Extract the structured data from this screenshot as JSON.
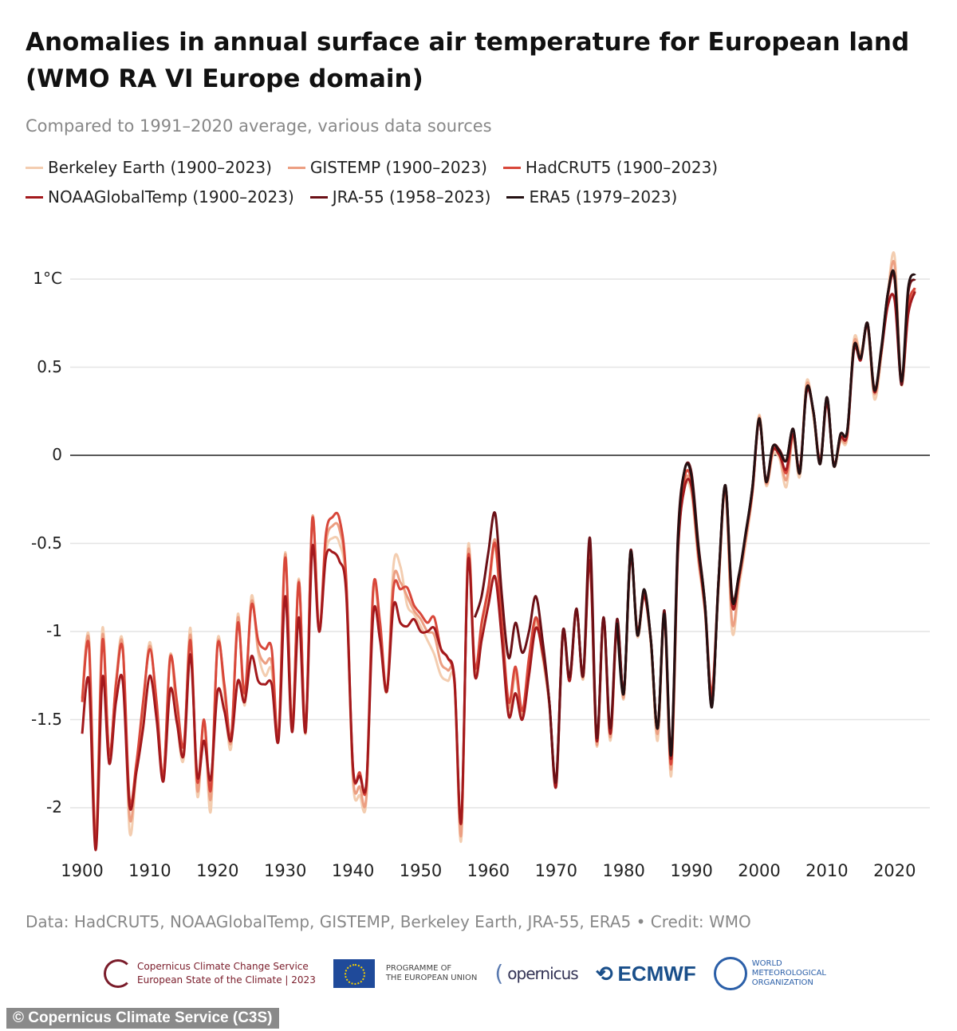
{
  "chart_data": {
    "type": "line",
    "title": "Anomalies in annual surface air temperature for European land (WMO RA VI Europe domain)",
    "subtitle": "Compared to 1991–2020 average, various data sources",
    "xlabel": "",
    "ylabel": "",
    "xlim": [
      1900,
      2023
    ],
    "ylim": [
      -2.25,
      1.15
    ],
    "x_ticks": [
      "1900",
      "1910",
      "1920",
      "1930",
      "1940",
      "1950",
      "1960",
      "1970",
      "1980",
      "1990",
      "2000",
      "2010",
      "2020"
    ],
    "y_ticks": [
      {
        "value": 1,
        "label": "1°C"
      },
      {
        "value": 0.5,
        "label": "0.5"
      },
      {
        "value": 0,
        "label": "0"
      },
      {
        "value": -0.5,
        "label": "-0.5"
      },
      {
        "value": -1,
        "label": "-1"
      },
      {
        "value": -1.5,
        "label": "-1.5"
      },
      {
        "value": -2,
        "label": "-2"
      }
    ],
    "grid": true,
    "legend_position": "top-left",
    "series": [
      {
        "name": "Berkeley Earth (1900–2023)",
        "color": "#f3cdb0",
        "start_year": 1900,
        "values": [
          -1.38,
          -1.03,
          -2.15,
          -0.98,
          -1.72,
          -1.28,
          -1.07,
          -2.13,
          -1.8,
          -1.45,
          -1.06,
          -1.45,
          -1.83,
          -1.13,
          -1.5,
          -1.72,
          -0.98,
          -1.93,
          -1.52,
          -2.02,
          -1.05,
          -1.35,
          -1.66,
          -0.9,
          -1.42,
          -0.8,
          -1.12,
          -1.25,
          -1.22,
          -1.6,
          -0.55,
          -1.55,
          -0.7,
          -1.58,
          -0.36,
          -0.98,
          -0.55,
          -0.47,
          -0.5,
          -0.75,
          -1.85,
          -1.93,
          -1.94,
          -0.78,
          -1.0,
          -1.34,
          -0.62,
          -0.63,
          -0.85,
          -0.9,
          -0.97,
          -1.05,
          -1.13,
          -1.25,
          -1.28,
          -1.3,
          -2.18,
          -0.52,
          -1.22,
          -0.98,
          -0.8,
          -0.52,
          -1.0,
          -1.45,
          -1.25,
          -1.48,
          -1.2,
          -0.95,
          -1.15,
          -1.42,
          -1.85,
          -1.0,
          -1.28,
          -0.88,
          -1.27,
          -0.58,
          -1.65,
          -0.95,
          -1.62,
          -0.97,
          -1.38,
          -0.57,
          -1.03,
          -0.8,
          -1.08,
          -1.62,
          -0.92,
          -1.82,
          -0.55,
          -0.18,
          -0.22,
          -0.6,
          -0.9,
          -1.38,
          -0.75,
          -0.2,
          -1.0,
          -0.75,
          -0.5,
          -0.22,
          0.23,
          -0.17,
          0.0,
          -0.02,
          -0.18,
          0.1,
          -0.12,
          0.42,
          0.22,
          -0.05,
          0.3,
          -0.06,
          0.08,
          0.1,
          0.66,
          0.58,
          0.73,
          0.32,
          0.55,
          0.92,
          1.13,
          0.4,
          0.82,
          0.92
        ]
      },
      {
        "name": "GISTEMP (1900–2023)",
        "color": "#ec9f82",
        "start_year": 1900,
        "values": [
          -1.38,
          -1.05,
          -2.18,
          -1.02,
          -1.7,
          -1.3,
          -1.08,
          -2.05,
          -1.78,
          -1.42,
          -1.08,
          -1.42,
          -1.83,
          -1.14,
          -1.45,
          -1.68,
          -1.02,
          -1.9,
          -1.5,
          -1.95,
          -1.07,
          -1.32,
          -1.63,
          -0.92,
          -1.4,
          -0.83,
          -1.1,
          -1.18,
          -1.18,
          -1.6,
          -0.56,
          -1.55,
          -0.71,
          -1.57,
          -0.35,
          -1.0,
          -0.5,
          -0.4,
          -0.42,
          -0.72,
          -1.82,
          -1.88,
          -1.92,
          -0.76,
          -0.98,
          -1.34,
          -0.7,
          -0.72,
          -0.8,
          -0.88,
          -0.93,
          -1.0,
          -1.02,
          -1.18,
          -1.22,
          -1.28,
          -2.15,
          -0.55,
          -1.22,
          -0.96,
          -0.77,
          -0.48,
          -0.98,
          -1.43,
          -1.22,
          -1.47,
          -1.18,
          -0.93,
          -1.12,
          -1.41,
          -1.86,
          -1.0,
          -1.28,
          -0.87,
          -1.26,
          -0.56,
          -1.64,
          -0.94,
          -1.6,
          -0.96,
          -1.37,
          -0.56,
          -1.02,
          -0.79,
          -1.06,
          -1.58,
          -0.91,
          -1.78,
          -0.52,
          -0.15,
          -0.18,
          -0.58,
          -0.88,
          -1.37,
          -0.72,
          -0.19,
          -0.95,
          -0.72,
          -0.48,
          -0.21,
          0.22,
          -0.16,
          0.02,
          0.0,
          -0.14,
          0.11,
          -0.1,
          0.4,
          0.24,
          -0.04,
          0.31,
          -0.05,
          0.09,
          0.11,
          0.64,
          0.56,
          0.74,
          0.35,
          0.57,
          0.91,
          1.08,
          0.41,
          0.84,
          0.94
        ]
      },
      {
        "name": "HadCRUT5 (1900–2023)",
        "color": "#d8473a",
        "start_year": 1900,
        "values": [
          -1.4,
          -1.08,
          -2.2,
          -1.05,
          -1.7,
          -1.3,
          -1.1,
          -1.95,
          -1.75,
          -1.4,
          -1.1,
          -1.4,
          -1.82,
          -1.15,
          -1.4,
          -1.65,
          -1.05,
          -1.85,
          -1.5,
          -1.9,
          -1.08,
          -1.3,
          -1.6,
          -0.95,
          -1.35,
          -0.85,
          -1.05,
          -1.1,
          -1.1,
          -1.6,
          -0.58,
          -1.55,
          -0.72,
          -1.55,
          -0.36,
          -1.0,
          -0.45,
          -0.35,
          -0.36,
          -0.7,
          -1.78,
          -1.8,
          -1.86,
          -0.75,
          -0.95,
          -1.34,
          -0.75,
          -0.76,
          -0.75,
          -0.85,
          -0.9,
          -0.95,
          -0.92,
          -1.1,
          -1.15,
          -1.3,
          -2.08,
          -0.58,
          -1.2,
          -0.95,
          -0.75,
          -0.5,
          -0.95,
          -1.4,
          -1.2,
          -1.45,
          -1.15,
          -0.92,
          -1.1,
          -1.4,
          -1.85,
          -1.0,
          -1.28,
          -0.88,
          -1.25,
          -0.55,
          -1.62,
          -0.93,
          -1.58,
          -0.95,
          -1.35,
          -0.55,
          -1.0,
          -0.78,
          -1.05,
          -1.55,
          -0.9,
          -1.75,
          -0.5,
          -0.12,
          -0.15,
          -0.55,
          -0.85,
          -1.35,
          -0.7,
          -0.18,
          -0.85,
          -0.7,
          -0.45,
          -0.2,
          0.2,
          -0.15,
          0.03,
          0.02,
          -0.1,
          0.12,
          -0.08,
          0.38,
          0.25,
          -0.03,
          0.32,
          -0.05,
          0.1,
          0.12,
          0.62,
          0.55,
          0.75,
          0.38,
          0.58,
          0.9,
          1.0,
          0.42,
          0.85,
          0.95
        ]
      },
      {
        "name": "NOAAGlobalTemp (1900–2023)",
        "color": "#a3191c",
        "start_year": 1900,
        "values": [
          -1.58,
          -1.28,
          -2.24,
          -1.26,
          -1.75,
          -1.4,
          -1.28,
          -1.99,
          -1.8,
          -1.55,
          -1.25,
          -1.5,
          -1.85,
          -1.33,
          -1.52,
          -1.7,
          -1.13,
          -1.82,
          -1.62,
          -1.84,
          -1.34,
          -1.45,
          -1.62,
          -1.28,
          -1.4,
          -1.14,
          -1.28,
          -1.3,
          -1.3,
          -1.62,
          -0.8,
          -1.57,
          -0.92,
          -1.57,
          -0.52,
          -1.0,
          -0.58,
          -0.55,
          -0.6,
          -0.78,
          -1.77,
          -1.82,
          -1.85,
          -0.9,
          -1.05,
          -1.34,
          -0.85,
          -0.95,
          -0.97,
          -0.93,
          -1.0,
          -1.0,
          -0.98,
          -1.1,
          -1.15,
          -1.28,
          -2.08,
          -0.6,
          -1.25,
          -1.05,
          -0.85,
          -0.69,
          -1.05,
          -1.48,
          -1.35,
          -1.5,
          -1.25,
          -0.98,
          -1.12,
          -1.4,
          -1.88,
          -1.02,
          -1.28,
          -0.88,
          -1.25,
          -0.6,
          -1.62,
          -0.92,
          -1.58,
          -0.95,
          -1.35,
          -0.58,
          -1.0,
          -0.8,
          -1.05,
          -1.55,
          -0.92,
          -1.72,
          -0.55,
          -0.18,
          -0.18,
          -0.55,
          -0.88,
          -1.4,
          -0.72,
          -0.18,
          -0.85,
          -0.7,
          -0.45,
          -0.2,
          0.2,
          -0.15,
          0.03,
          0.0,
          -0.08,
          0.12,
          -0.08,
          0.36,
          0.25,
          -0.04,
          0.3,
          -0.05,
          0.1,
          0.12,
          0.6,
          0.54,
          0.74,
          0.36,
          0.58,
          0.85,
          0.88,
          0.42,
          0.8,
          0.93
        ]
      },
      {
        "name": "JRA-55 (1958–2023)",
        "color": "#6b1016",
        "start_year": 1958,
        "values": [
          -0.92,
          -0.8,
          -0.55,
          -0.33,
          -0.8,
          -1.15,
          -0.95,
          -1.12,
          -1.0,
          -0.8,
          -1.05,
          -1.4,
          -1.85,
          -1.0,
          -1.26,
          -0.87,
          -1.25,
          -0.47,
          -1.6,
          -0.92,
          -1.55,
          -0.93,
          -1.35,
          -0.54,
          -1.02,
          -0.77,
          -1.05,
          -1.55,
          -0.88,
          -1.68,
          -0.45,
          -0.08,
          -0.1,
          -0.5,
          -0.85,
          -1.42,
          -0.7,
          -0.17,
          -0.8,
          -0.68,
          -0.45,
          -0.18,
          0.2,
          -0.14,
          0.05,
          0.03,
          -0.03,
          0.15,
          -0.1,
          0.38,
          0.25,
          -0.05,
          0.33,
          -0.06,
          0.12,
          0.14,
          0.62,
          0.55,
          0.75,
          0.37,
          0.58,
          0.92,
          1.0,
          0.4,
          0.92,
          1.0
        ]
      },
      {
        "name": "ERA5 (1979–2023)",
        "color": "#241012",
        "start_year": 1979,
        "values": [
          -0.95,
          -1.35,
          -0.55,
          -1.02,
          -0.76,
          -1.05,
          -1.55,
          -0.9,
          -1.7,
          -0.48,
          -0.08,
          -0.12,
          -0.52,
          -0.85,
          -1.43,
          -0.7,
          -0.17,
          -0.82,
          -0.68,
          -0.44,
          -0.18,
          0.21,
          -0.15,
          0.05,
          0.02,
          -0.03,
          0.15,
          -0.1,
          0.38,
          0.25,
          -0.05,
          0.33,
          -0.06,
          0.12,
          0.14,
          0.62,
          0.55,
          0.75,
          0.37,
          0.6,
          0.92,
          1.02,
          0.42,
          0.95,
          1.03
        ]
      }
    ]
  },
  "source": "Data: HadCRUT5, NOAAGlobalTemp, GISTEMP, Berkeley Earth, JRA-55, ERA5 • Credit: WMO",
  "logos": {
    "c3s_line1": "Copernicus Climate Change Service",
    "c3s_line2": "European State of the Climate | 2023",
    "eu_line1": "PROGRAMME OF",
    "eu_line2": "THE EUROPEAN UNION",
    "copernicus": "opernicus",
    "ecmwf": "ECMWF",
    "wmo_line1": "WORLD",
    "wmo_line2": "METEOROLOGICAL",
    "wmo_line3": "ORGANIZATION"
  },
  "copyright": "© Copernicus Climate Service (C3S)"
}
